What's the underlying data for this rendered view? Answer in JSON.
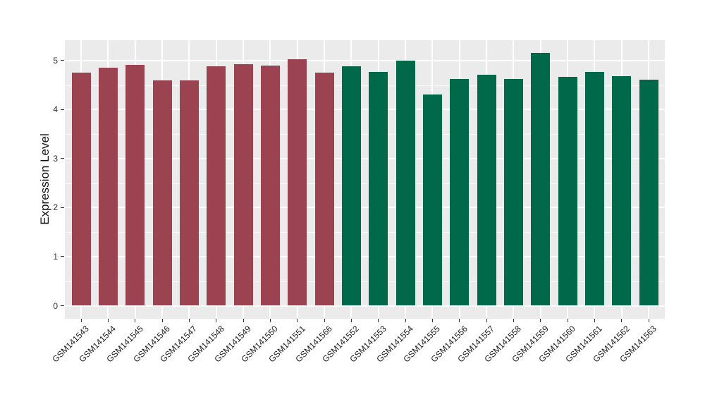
{
  "chart_data": {
    "type": "bar",
    "title": "",
    "xlabel": "",
    "ylabel": "Expression Level",
    "ylim": [
      -0.26,
      5.43
    ],
    "yticks": [
      "0",
      "1",
      "2",
      "3",
      "4",
      "5"
    ],
    "grid": true,
    "legend_position": "none",
    "categories": [
      "GSM141543",
      "GSM141544",
      "GSM141545",
      "GSM141546",
      "GSM141547",
      "GSM141548",
      "GSM141549",
      "GSM141550",
      "GSM141551",
      "GSM141566",
      "GSM141552",
      "GSM141553",
      "GSM141554",
      "GSM141555",
      "GSM141556",
      "GSM141557",
      "GSM141558",
      "GSM141559",
      "GSM141560",
      "GSM141561",
      "GSM141562",
      "GSM141563"
    ],
    "values": [
      4.75,
      4.86,
      4.91,
      4.6,
      4.6,
      4.88,
      4.92,
      4.89,
      5.02,
      4.75,
      4.88,
      4.77,
      4.99,
      4.3,
      4.63,
      4.71,
      4.63,
      5.16,
      4.67,
      4.77,
      4.68,
      4.61
    ],
    "bar_groups": [
      "group1",
      "group1",
      "group1",
      "group1",
      "group1",
      "group1",
      "group1",
      "group1",
      "group1",
      "group1",
      "group2",
      "group2",
      "group2",
      "group2",
      "group2",
      "group2",
      "group2",
      "group2",
      "group2",
      "group2",
      "group2",
      "group2"
    ],
    "colors": {
      "group1": "#9B4350",
      "group2": "#00694A"
    },
    "style": {
      "panel_background": "#EBEBEB",
      "grid_color": "#FFFFFF",
      "figure_background": "#FFFFFF",
      "tick_color": "#333333"
    }
  }
}
